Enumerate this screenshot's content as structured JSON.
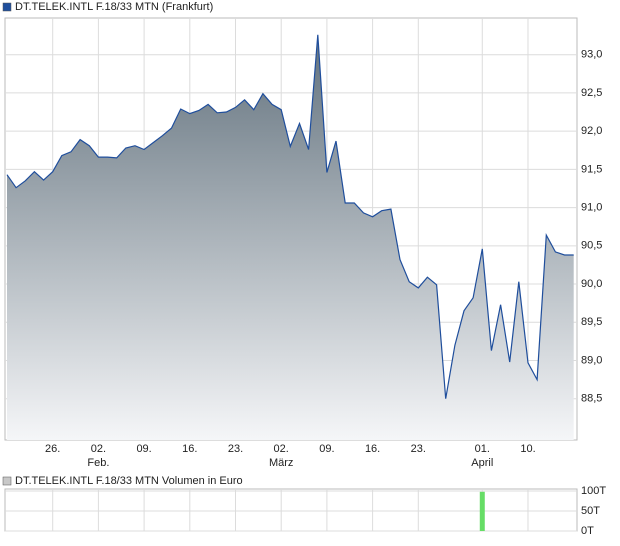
{
  "chart_data": [
    {
      "type": "area",
      "title": "DT.TELEK.INTL F.18/33 MTN (Frankfurt)",
      "color": "#1f4e9c",
      "fill_top": "#5c6c78",
      "fill_bottom": "#f5f6f8",
      "values": [
        91.43,
        91.26,
        91.35,
        91.47,
        91.36,
        91.47,
        91.68,
        91.73,
        91.89,
        91.81,
        91.66,
        91.66,
        91.65,
        91.78,
        91.81,
        91.76,
        91.85,
        91.94,
        92.04,
        92.29,
        92.23,
        92.27,
        92.35,
        92.24,
        92.25,
        92.31,
        92.41,
        92.28,
        92.49,
        92.35,
        92.28,
        91.8,
        92.1,
        91.76,
        93.26,
        91.46,
        91.87,
        91.06,
        91.06,
        90.93,
        90.88,
        90.96,
        90.98,
        90.32,
        90.03,
        89.95,
        90.09,
        89.99,
        88.5,
        89.2,
        89.65,
        89.82,
        90.46,
        89.13,
        89.73,
        88.98,
        90.03,
        88.97,
        88.75,
        90.64,
        90.42,
        90.38,
        90.38
      ],
      "ylim": [
        87.96,
        93.48
      ],
      "yticks": [
        {
          "value": 88.5,
          "label": "88,5"
        },
        {
          "value": 89.0,
          "label": "89,0"
        },
        {
          "value": 89.5,
          "label": "89,5"
        },
        {
          "value": 90.0,
          "label": "90,0"
        },
        {
          "value": 90.5,
          "label": "90,5"
        },
        {
          "value": 91.0,
          "label": "91,0"
        },
        {
          "value": 91.5,
          "label": "91,5"
        },
        {
          "value": 92.0,
          "label": "92,0"
        },
        {
          "value": 92.5,
          "label": "92,5"
        },
        {
          "value": 93.0,
          "label": "93,0"
        }
      ],
      "xticks": [
        {
          "value": 5,
          "label": "26."
        },
        {
          "value": 10,
          "label": "02."
        },
        {
          "value": 15,
          "label": "09."
        },
        {
          "value": 20,
          "label": "16."
        },
        {
          "value": 25,
          "label": "23."
        },
        {
          "value": 30,
          "label": "02."
        },
        {
          "value": 35,
          "label": "09."
        },
        {
          "value": 40,
          "label": "16."
        },
        {
          "value": 45,
          "label": "23."
        },
        {
          "value": 52,
          "label": "01."
        },
        {
          "value": 57,
          "label": "10."
        }
      ],
      "month_ticks": [
        {
          "value": 10,
          "label": "Feb."
        },
        {
          "value": 30,
          "label": "März"
        },
        {
          "value": 52,
          "label": "April"
        }
      ],
      "grid": true
    },
    {
      "type": "bar",
      "title": "DT.TELEK.INTL F.18/33 MTN Volumen in Euro",
      "color": "#66dd66",
      "legend_color": "#c8c8c8",
      "values": [
        0,
        0,
        0,
        0,
        0,
        0,
        0,
        0,
        0,
        0,
        0,
        0,
        0,
        0,
        0,
        0,
        0,
        0,
        0,
        0,
        0,
        0,
        0,
        0,
        0,
        0,
        0,
        0,
        0,
        0,
        0,
        0,
        0,
        0,
        0,
        0,
        0,
        0,
        0,
        0,
        0,
        0,
        0,
        0,
        0,
        0,
        0,
        0,
        0,
        0,
        0,
        0,
        98,
        0,
        0,
        0,
        0,
        0,
        0,
        0,
        0,
        0,
        0
      ],
      "ylim": [
        0,
        105
      ],
      "yticks": [
        {
          "value": 0,
          "label": "0T"
        },
        {
          "value": 50,
          "label": "50T"
        },
        {
          "value": 100,
          "label": "100T"
        }
      ],
      "xticks": [
        {
          "value": 5,
          "label": "26."
        },
        {
          "value": 10,
          "label": "02."
        },
        {
          "value": 15,
          "label": "09."
        },
        {
          "value": 20,
          "label": "16."
        },
        {
          "value": 25,
          "label": "23."
        },
        {
          "value": 30,
          "label": "02."
        },
        {
          "value": 35,
          "label": "09."
        },
        {
          "value": 40,
          "label": "16."
        },
        {
          "value": 45,
          "label": "23."
        },
        {
          "value": 52,
          "label": "01."
        },
        {
          "value": 57,
          "label": "10."
        }
      ],
      "grid": true
    }
  ]
}
